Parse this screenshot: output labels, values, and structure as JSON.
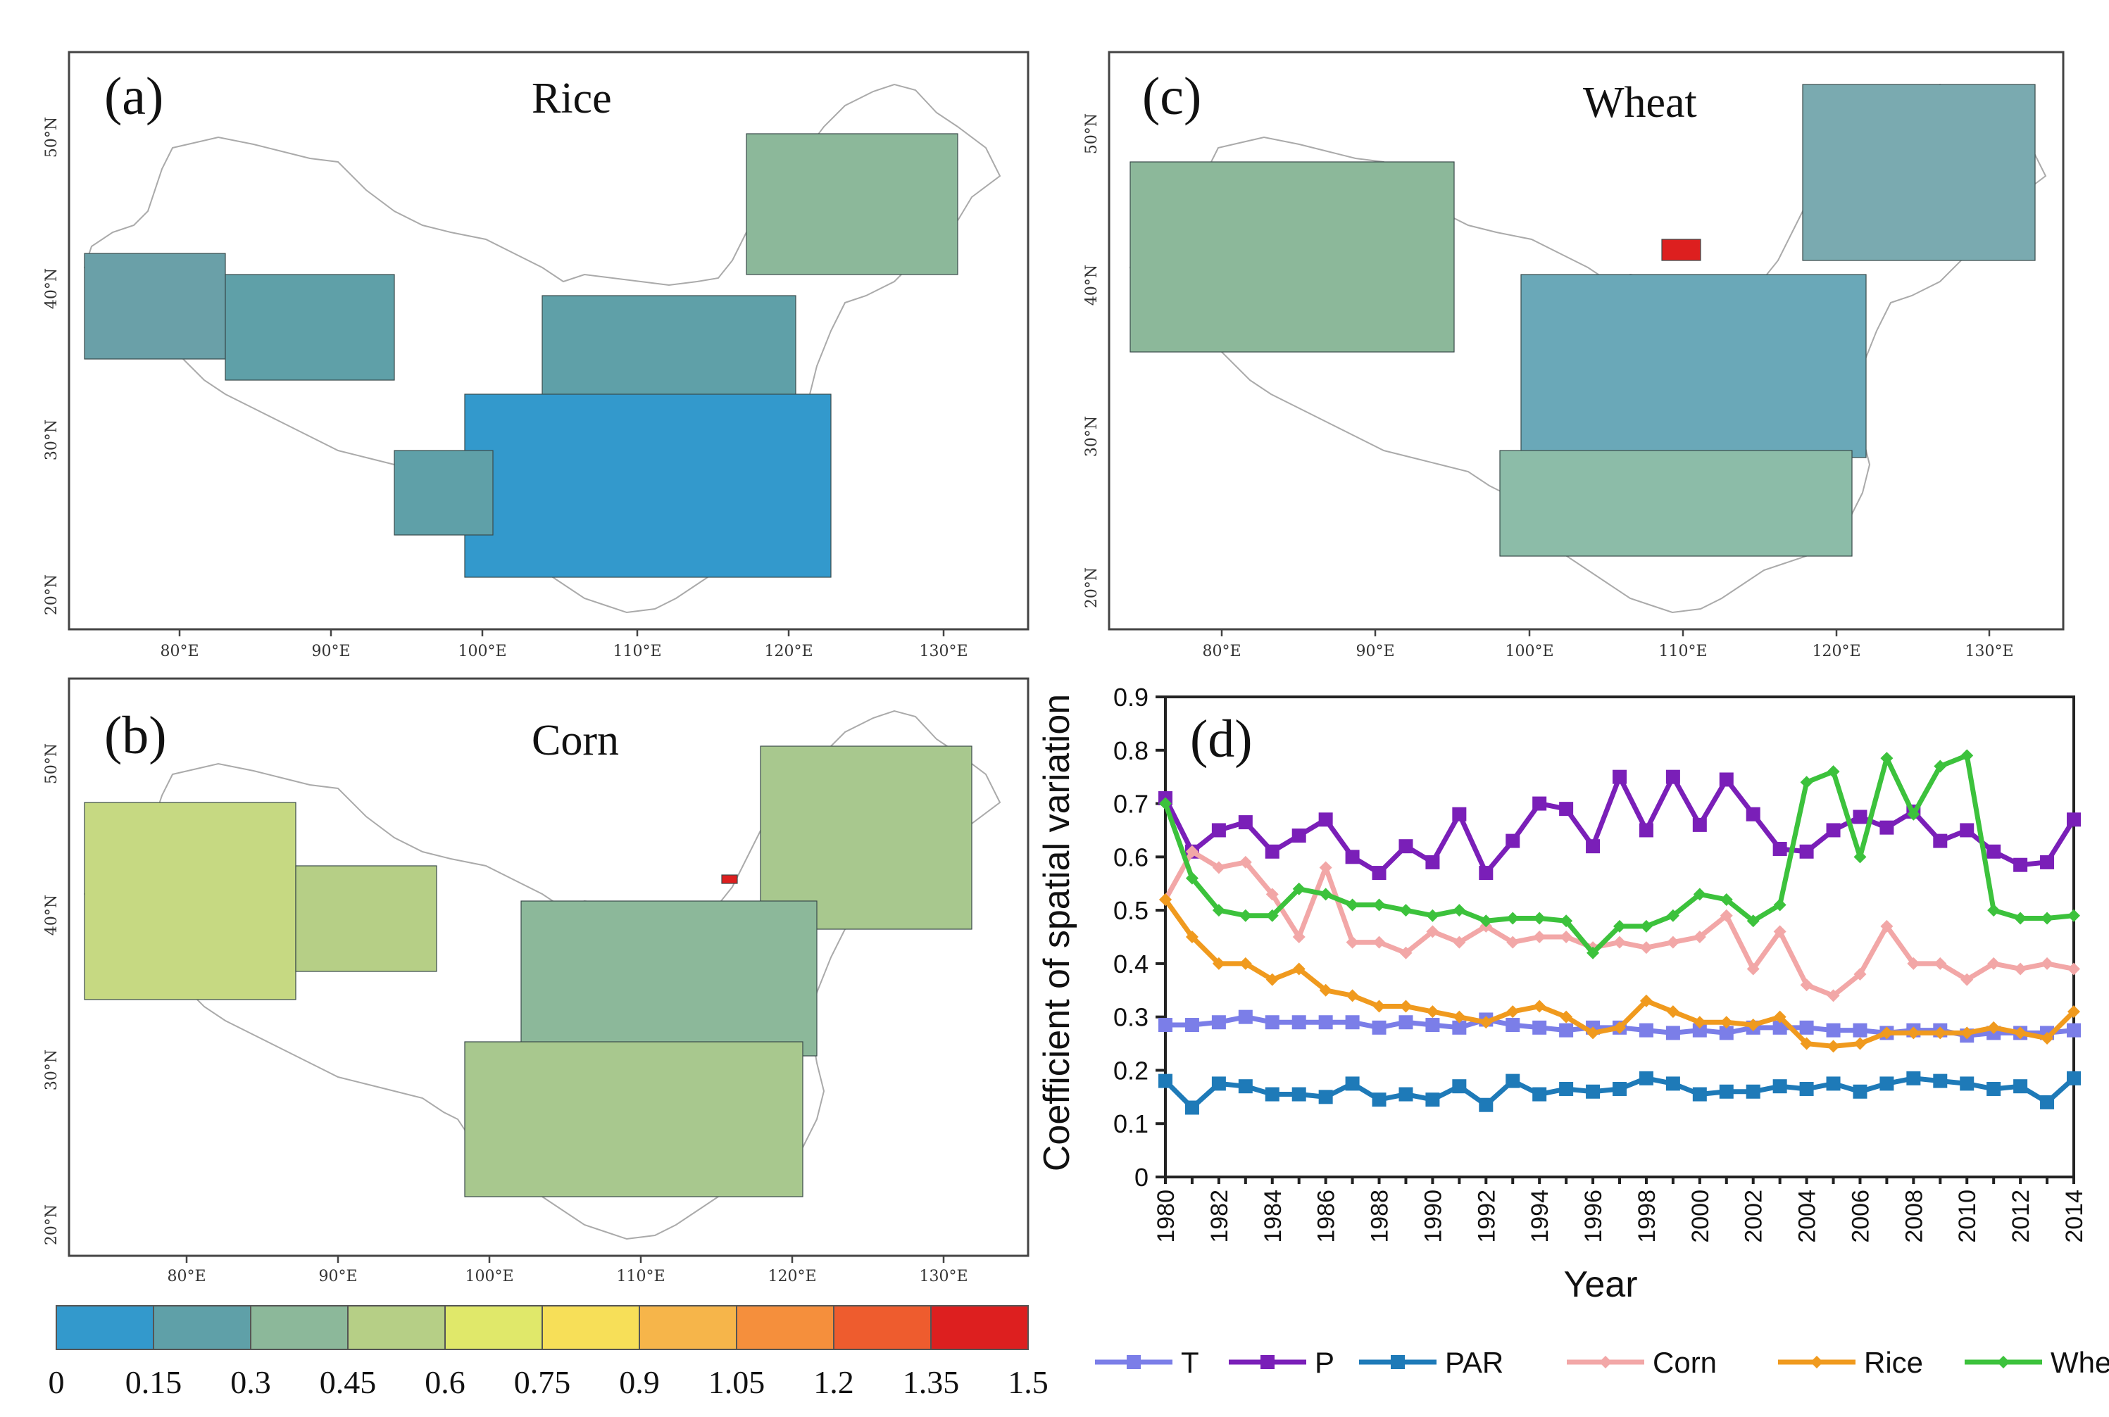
{
  "panels": {
    "a": {
      "label": "(a)",
      "title": "Rice"
    },
    "b": {
      "label": "(b)",
      "title": "Corn"
    },
    "c": {
      "label": "(c)",
      "title": "Wheat"
    }
  },
  "map_axes": {
    "lon_labels": [
      "80°E",
      "90°E",
      "100°E",
      "110°E",
      "120°E",
      "130°E"
    ],
    "lat_labels": [
      "20°N",
      "30°N",
      "40°N",
      "50°N"
    ]
  },
  "colorbar": {
    "ticks": [
      "0",
      "0.15",
      "0.3",
      "0.45",
      "0.6",
      "0.75",
      "0.9",
      "1.05",
      "1.2",
      "1.35",
      "1.5"
    ],
    "colors": [
      "#3399cc",
      "#5fa0a8",
      "#8cb89a",
      "#b6cf86",
      "#e0e86a",
      "#f7df58",
      "#f6b54a",
      "#f58f3c",
      "#ee5c2e",
      "#dd1f1f"
    ]
  },
  "chart_data": {
    "type": "line",
    "panel_label": "(d)",
    "xlabel": "Year",
    "ylabel": "Coefficient of spatial variation",
    "ylim": [
      0,
      0.9
    ],
    "yticks": [
      "0",
      "0.1",
      "0.2",
      "0.3",
      "0.4",
      "0.5",
      "0.6",
      "0.7",
      "0.8",
      "0.9"
    ],
    "xticks": [
      "1980",
      "1982",
      "1984",
      "1986",
      "1988",
      "1990",
      "1992",
      "1994",
      "1996",
      "1998",
      "2000",
      "2002",
      "2004",
      "2006",
      "2008",
      "2010",
      "2012",
      "2014"
    ],
    "x": [
      1980,
      1981,
      1982,
      1983,
      1984,
      1985,
      1986,
      1987,
      1988,
      1989,
      1990,
      1991,
      1992,
      1993,
      1994,
      1995,
      1996,
      1997,
      1998,
      1999,
      2000,
      2001,
      2002,
      2003,
      2004,
      2005,
      2006,
      2007,
      2008,
      2009,
      2010,
      2011,
      2012,
      2013,
      2014
    ],
    "series": [
      {
        "name": "T",
        "color": "#7b7ee8",
        "marker": "square",
        "values": [
          0.285,
          0.285,
          0.29,
          0.3,
          0.29,
          0.29,
          0.29,
          0.29,
          0.28,
          0.29,
          0.285,
          0.28,
          0.295,
          0.285,
          0.28,
          0.275,
          0.28,
          0.28,
          0.275,
          0.27,
          0.275,
          0.27,
          0.28,
          0.28,
          0.28,
          0.275,
          0.275,
          0.27,
          0.275,
          0.275,
          0.265,
          0.27,
          0.27,
          0.27,
          0.275
        ]
      },
      {
        "name": "P",
        "color": "#7a1fb8",
        "marker": "square",
        "values": [
          0.71,
          0.61,
          0.65,
          0.665,
          0.61,
          0.64,
          0.67,
          0.6,
          0.57,
          0.62,
          0.59,
          0.68,
          0.57,
          0.63,
          0.7,
          0.69,
          0.62,
          0.75,
          0.65,
          0.75,
          0.66,
          0.745,
          0.68,
          0.615,
          0.61,
          0.65,
          0.675,
          0.655,
          0.685,
          0.63,
          0.65,
          0.61,
          0.585,
          0.59,
          0.67
        ]
      },
      {
        "name": "PAR",
        "color": "#1e7ab8",
        "marker": "square",
        "values": [
          0.18,
          0.13,
          0.175,
          0.17,
          0.155,
          0.155,
          0.15,
          0.175,
          0.145,
          0.155,
          0.145,
          0.17,
          0.135,
          0.18,
          0.155,
          0.165,
          0.16,
          0.165,
          0.185,
          0.175,
          0.155,
          0.16,
          0.16,
          0.17,
          0.165,
          0.175,
          0.16,
          0.175,
          0.185,
          0.18,
          0.175,
          0.165,
          0.17,
          0.14,
          0.185
        ]
      },
      {
        "name": "Corn",
        "color": "#f2a7a7",
        "marker": "diamond",
        "values": [
          0.52,
          0.61,
          0.58,
          0.59,
          0.53,
          0.45,
          0.58,
          0.44,
          0.44,
          0.42,
          0.46,
          0.44,
          0.47,
          0.44,
          0.45,
          0.45,
          0.43,
          0.44,
          0.43,
          0.44,
          0.45,
          0.49,
          0.39,
          0.46,
          0.36,
          0.34,
          0.38,
          0.47,
          0.4,
          0.4,
          0.37,
          0.4,
          0.39,
          0.4,
          0.39
        ]
      },
      {
        "name": "Rice",
        "color": "#f09a1e",
        "marker": "diamond",
        "values": [
          0.52,
          0.45,
          0.4,
          0.4,
          0.37,
          0.39,
          0.35,
          0.34,
          0.32,
          0.32,
          0.31,
          0.3,
          0.29,
          0.31,
          0.32,
          0.3,
          0.27,
          0.28,
          0.33,
          0.31,
          0.29,
          0.29,
          0.285,
          0.3,
          0.25,
          0.245,
          0.25,
          0.27,
          0.27,
          0.27,
          0.27,
          0.28,
          0.27,
          0.26,
          0.31
        ]
      },
      {
        "name": "Wheat",
        "color": "#3cc23c",
        "marker": "diamond",
        "values": [
          0.7,
          0.56,
          0.5,
          0.49,
          0.49,
          0.54,
          0.53,
          0.51,
          0.51,
          0.5,
          0.49,
          0.5,
          0.48,
          0.485,
          0.485,
          0.48,
          0.42,
          0.47,
          0.47,
          0.49,
          0.53,
          0.52,
          0.48,
          0.51,
          0.74,
          0.76,
          0.6,
          0.785,
          0.68,
          0.77,
          0.79,
          0.5,
          0.485,
          0.485,
          0.49
        ]
      }
    ]
  }
}
